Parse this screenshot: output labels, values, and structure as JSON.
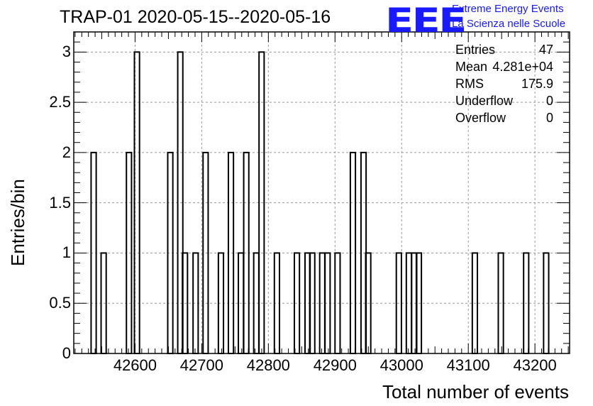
{
  "title": "TRAP-01 2020-05-15--2020-05-16",
  "logo": {
    "text": "EEE",
    "line1": "Extreme Energy Events",
    "line2": "La Scienza nelle Scuole"
  },
  "stats": [
    {
      "key": "Entries",
      "value": "47"
    },
    {
      "key": "Mean",
      "value": "4.281e+04"
    },
    {
      "key": "RMS",
      "value": "175.9"
    },
    {
      "key": "Underflow",
      "value": "0"
    },
    {
      "key": "Overflow",
      "value": "0"
    }
  ],
  "chart_data": {
    "type": "bar",
    "title": "TRAP-01 2020-05-15--2020-05-16",
    "xlabel": "Total number of events",
    "ylabel": "Entries/bin",
    "xlim": [
      42508,
      43252
    ],
    "ylim": [
      0,
      3.2
    ],
    "xticks": [
      42600,
      42700,
      42800,
      42900,
      43000,
      43100,
      43200
    ],
    "yticks": [
      0,
      0.5,
      1,
      1.5,
      2,
      2.5,
      3
    ],
    "ytick_labels": [
      "0",
      "0.5",
      "1",
      "1.5",
      "2",
      "2.5",
      "3"
    ],
    "grid": true,
    "bin_width": 7.65,
    "bins": [
      {
        "x": 42534,
        "count": 2
      },
      {
        "x": 42549,
        "count": 1
      },
      {
        "x": 42587,
        "count": 2
      },
      {
        "x": 42595,
        "count": 0
      },
      {
        "x": 42599,
        "count": 3
      },
      {
        "x": 42649,
        "count": 2
      },
      {
        "x": 42664,
        "count": 3
      },
      {
        "x": 42671,
        "count": 1
      },
      {
        "x": 42687,
        "count": 1
      },
      {
        "x": 42702,
        "count": 2
      },
      {
        "x": 42725,
        "count": 1
      },
      {
        "x": 42740,
        "count": 2
      },
      {
        "x": 42755,
        "count": 1
      },
      {
        "x": 42763,
        "count": 2
      },
      {
        "x": 42778,
        "count": 1
      },
      {
        "x": 42786,
        "count": 3
      },
      {
        "x": 42809,
        "count": 1
      },
      {
        "x": 42839,
        "count": 1
      },
      {
        "x": 42855,
        "count": 1
      },
      {
        "x": 42862,
        "count": 1
      },
      {
        "x": 42877,
        "count": 1
      },
      {
        "x": 42885,
        "count": 1
      },
      {
        "x": 42900,
        "count": 1
      },
      {
        "x": 42923,
        "count": 2
      },
      {
        "x": 42939,
        "count": 2
      },
      {
        "x": 42946,
        "count": 1
      },
      {
        "x": 42992,
        "count": 1
      },
      {
        "x": 43007,
        "count": 1
      },
      {
        "x": 43015,
        "count": 1
      },
      {
        "x": 43022,
        "count": 1
      },
      {
        "x": 43106,
        "count": 1
      },
      {
        "x": 43145,
        "count": 1
      },
      {
        "x": 43183,
        "count": 1
      },
      {
        "x": 43213,
        "count": 1
      }
    ]
  }
}
